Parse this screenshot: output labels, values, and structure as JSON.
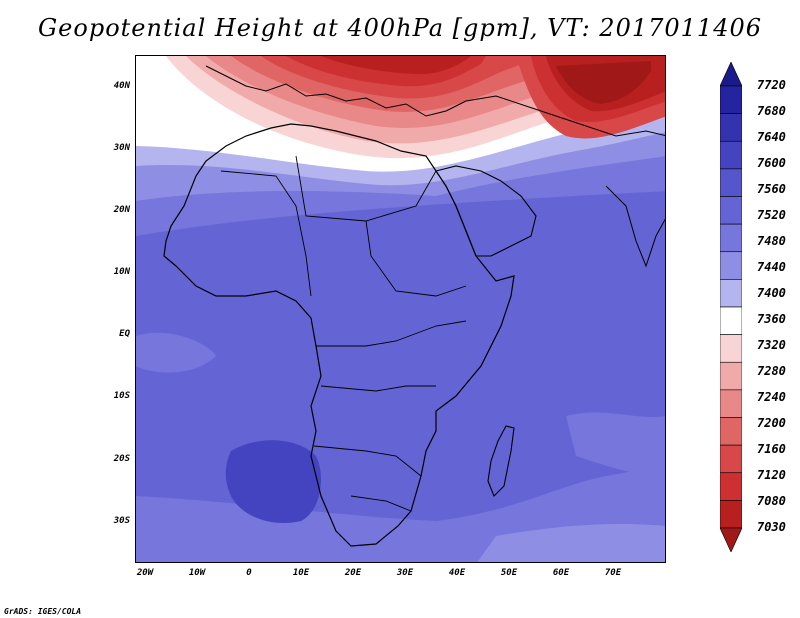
{
  "title": "Geopotential Height at 400hPa [gpm], VT: 2017011406",
  "credit": "GrADS: IGES/COLA",
  "map": {
    "lat_labels": [
      "40N",
      "30N",
      "20N",
      "10N",
      "EQ",
      "10S",
      "20S",
      "30S"
    ],
    "lon_labels": [
      "20W",
      "10W",
      "0",
      "10E",
      "20E",
      "30E",
      "40E",
      "50E",
      "60E",
      "70E"
    ],
    "lat_range": [
      -37,
      45
    ],
    "lon_range": [
      -22,
      80
    ]
  },
  "colorbar": {
    "labels": [
      "7720",
      "7680",
      "7640",
      "7600",
      "7560",
      "7520",
      "7480",
      "7440",
      "7400",
      "7360",
      "7320",
      "7280",
      "7240",
      "7200",
      "7160",
      "7120",
      "7080",
      "7030"
    ],
    "colors": [
      "#1a1a8c",
      "#2424a0",
      "#3333b0",
      "#4444c0",
      "#5555cc",
      "#6464d4",
      "#7676dc",
      "#8e8ee4",
      "#b4b4ee",
      "#ffffff",
      "#f8d4d4",
      "#f0aaaa",
      "#e88888",
      "#e06666",
      "#d84848",
      "#cc3030",
      "#b82020",
      "#a01818"
    ]
  }
}
